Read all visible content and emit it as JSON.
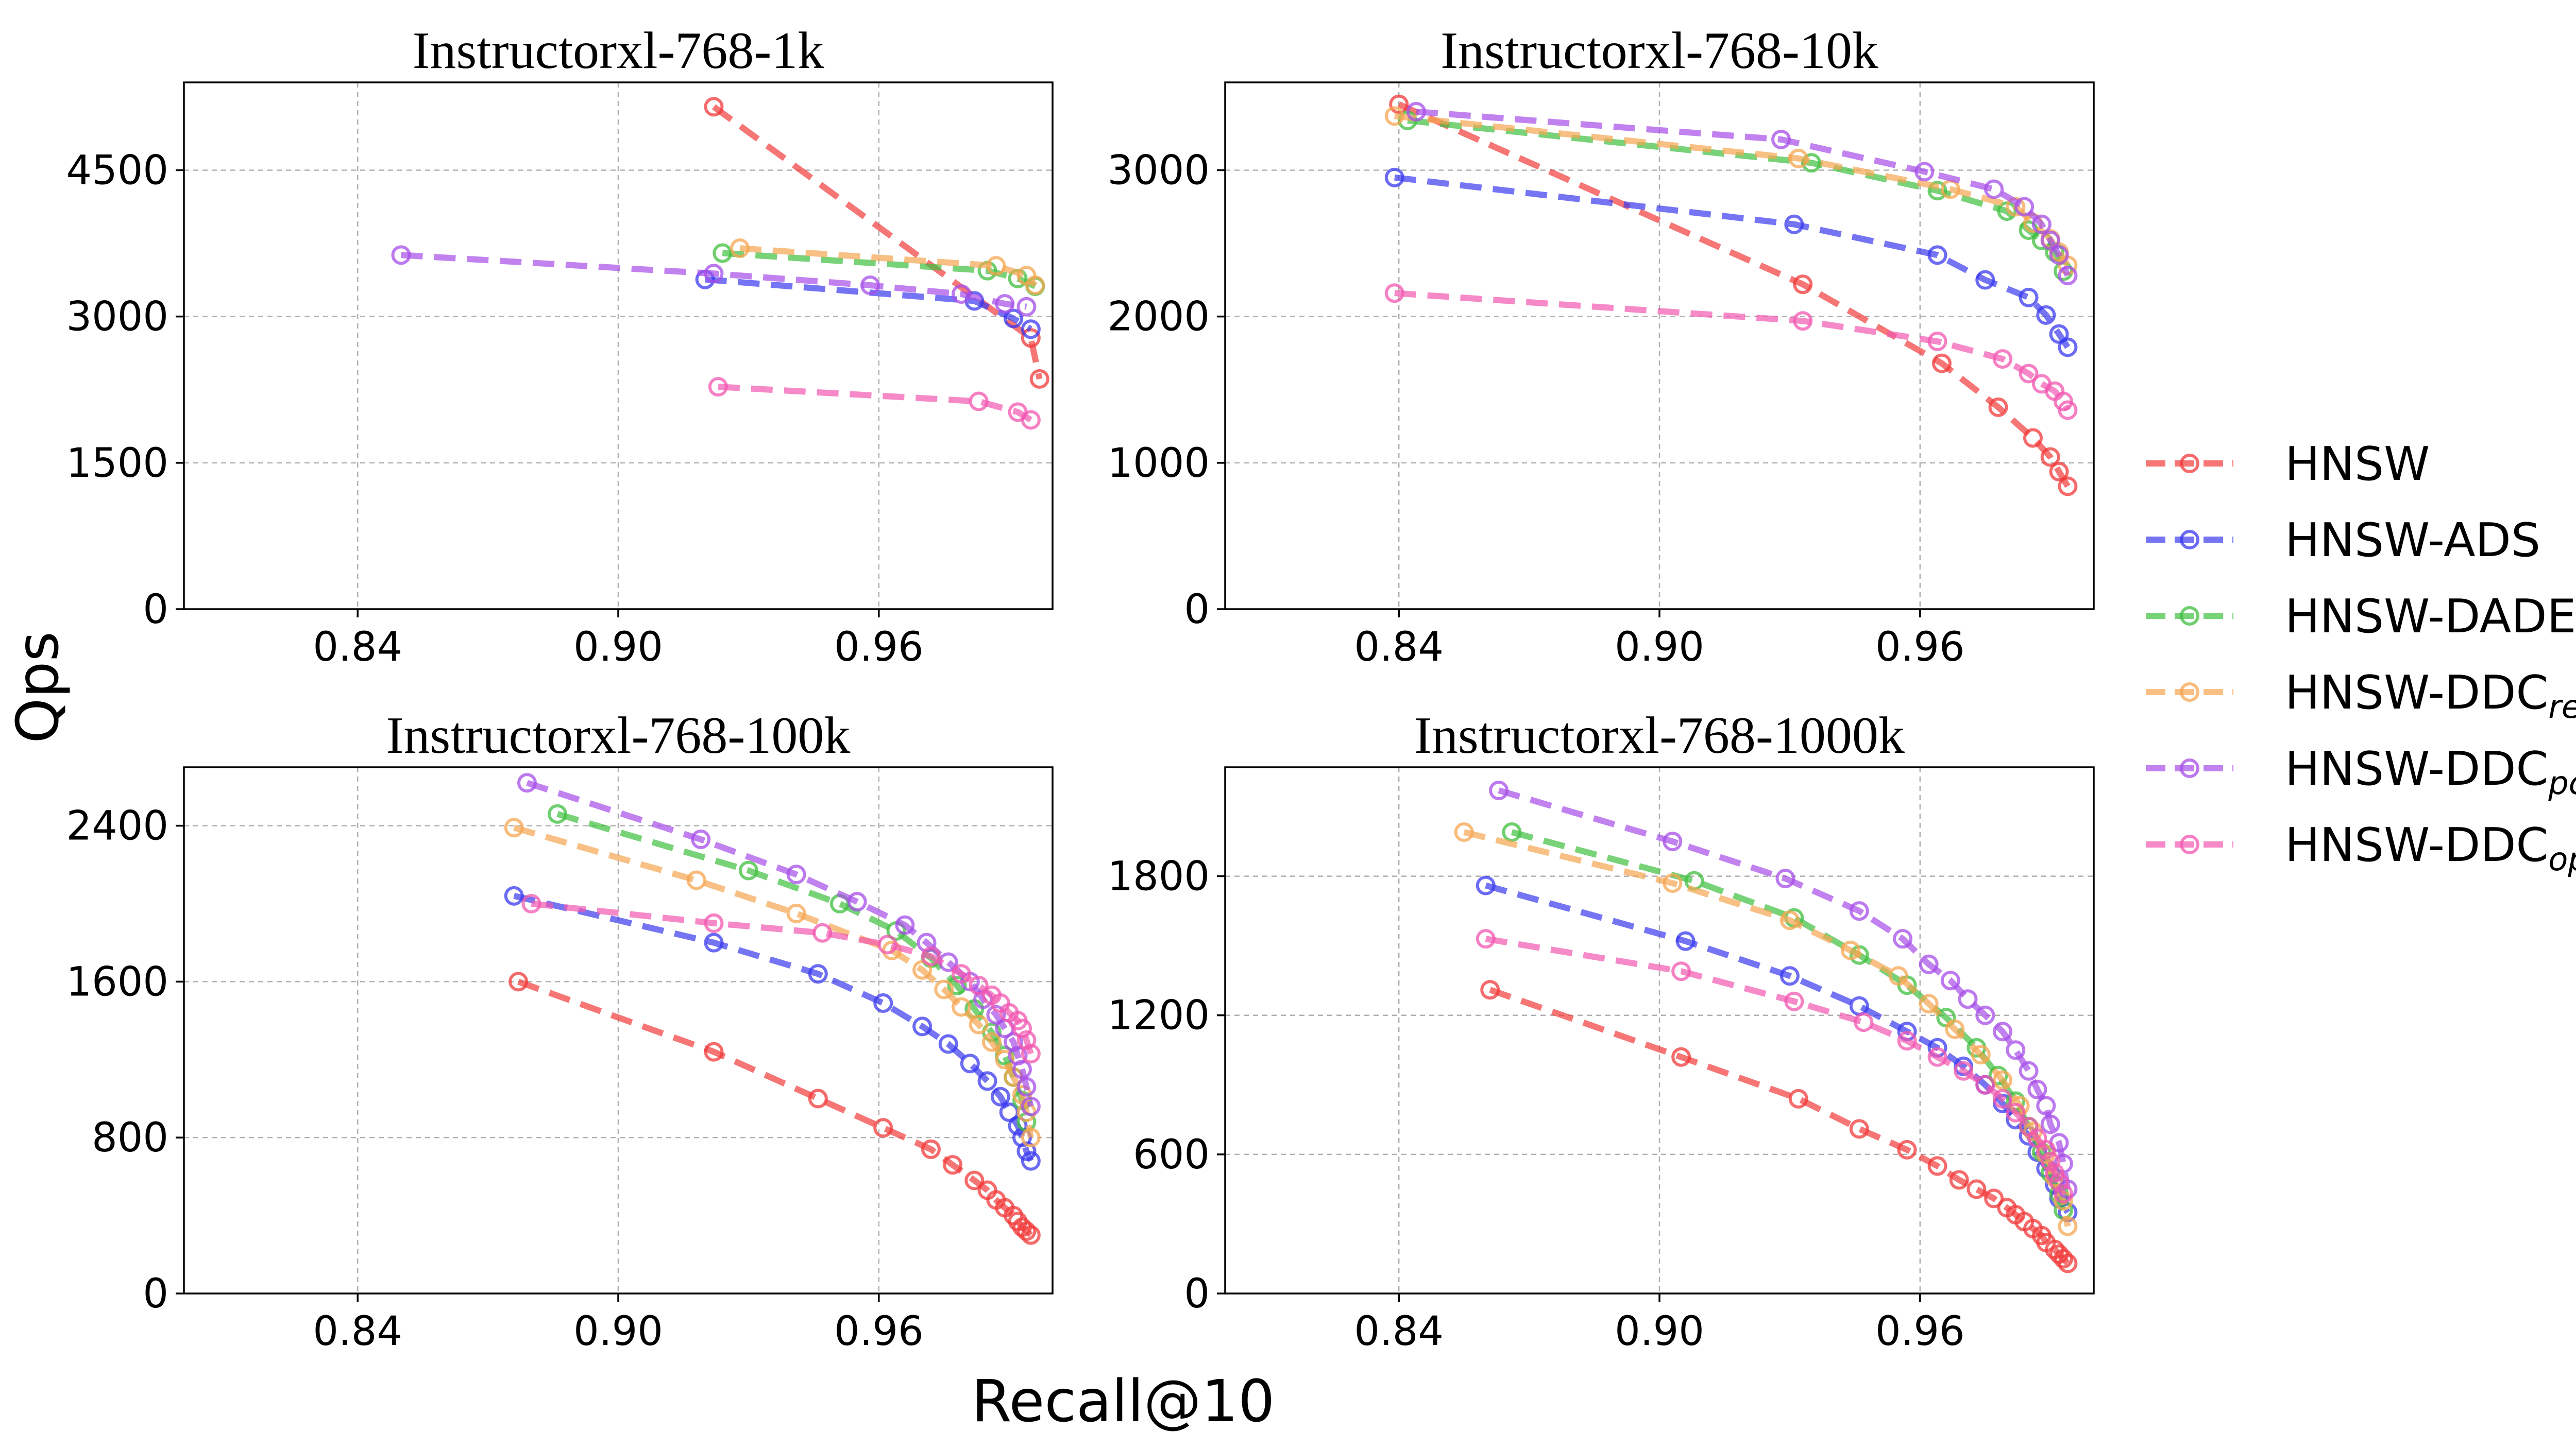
{
  "figure": {
    "xlabel": "Recall@10",
    "ylabel": "Qps"
  },
  "legend": [
    {
      "name": "HNSW",
      "base": "HNSW",
      "sub": ""
    },
    {
      "name": "HNSW-ADS",
      "base": "HNSW-ADS",
      "sub": ""
    },
    {
      "name": "HNSW-DADE",
      "base": "HNSW-DADE",
      "sub": ""
    },
    {
      "name": "HNSW-DDCres",
      "base": "HNSW-DDC",
      "sub": "res"
    },
    {
      "name": "HNSW-DDCpca",
      "base": "HNSW-DDC",
      "sub": "pca"
    },
    {
      "name": "HNSW-DDCopq",
      "base": "HNSW-DDC",
      "sub": "opq"
    }
  ],
  "colors": {
    "HNSW": "#f23a3a",
    "HNSW-ADS": "#3a3af0",
    "HNSW-DADE": "#3fbf3f",
    "HNSW-DDCres": "#f5a550",
    "HNSW-DDCpca": "#a64de8",
    "HNSW-DDCopq": "#f257b0"
  },
  "chart_data": [
    {
      "type": "line",
      "title": "Instructorxl-768-1k",
      "xlim": [
        0.8,
        1.0
      ],
      "ylim": [
        0,
        5400
      ],
      "xticks": [
        "0.84",
        "0.90",
        "0.96"
      ],
      "yticks": [
        "0",
        "1500",
        "3000",
        "4500"
      ],
      "series": [
        {
          "name": "HNSW",
          "x": [
            0.922,
            0.995,
            0.997
          ],
          "y": [
            5150,
            2780,
            2360
          ]
        },
        {
          "name": "HNSW-ADS",
          "x": [
            0.92,
            0.982,
            0.991,
            0.995
          ],
          "y": [
            3380,
            3160,
            2980,
            2870
          ]
        },
        {
          "name": "HNSW-DADE",
          "x": [
            0.924,
            0.985,
            0.992,
            0.996
          ],
          "y": [
            3650,
            3470,
            3390,
            3310
          ]
        },
        {
          "name": "HNSW-DDCres",
          "x": [
            0.928,
            0.987,
            0.994,
            0.996
          ],
          "y": [
            3700,
            3520,
            3420,
            3320
          ]
        },
        {
          "name": "HNSW-DDCpca",
          "x": [
            0.85,
            0.922,
            0.958,
            0.979,
            0.989,
            0.994
          ],
          "y": [
            3630,
            3440,
            3320,
            3230,
            3130,
            3100
          ]
        },
        {
          "name": "HNSW-DDCopq",
          "x": [
            0.923,
            0.983,
            0.992,
            0.995
          ],
          "y": [
            2280,
            2130,
            2020,
            1940
          ]
        }
      ]
    },
    {
      "type": "line",
      "title": "Instructorxl-768-10k",
      "xlim": [
        0.8,
        1.0
      ],
      "ylim": [
        0,
        3600
      ],
      "xticks": [
        "0.84",
        "0.90",
        "0.96"
      ],
      "yticks": [
        "0",
        "1000",
        "2000",
        "3000"
      ],
      "series": [
        {
          "name": "HNSW",
          "x": [
            0.84,
            0.933,
            0.965,
            0.978,
            0.986,
            0.99,
            0.992,
            0.994
          ],
          "y": [
            3450,
            2220,
            1680,
            1380,
            1170,
            1040,
            940,
            840
          ]
        },
        {
          "name": "HNSW-ADS",
          "x": [
            0.839,
            0.931,
            0.964,
            0.975,
            0.985,
            0.989,
            0.992,
            0.994
          ],
          "y": [
            2950,
            2630,
            2420,
            2250,
            2130,
            2010,
            1880,
            1790
          ]
        },
        {
          "name": "HNSW-DADE",
          "x": [
            0.842,
            0.935,
            0.964,
            0.98,
            0.985,
            0.988,
            0.991,
            0.993
          ],
          "y": [
            3340,
            3050,
            2860,
            2720,
            2590,
            2520,
            2440,
            2310
          ]
        },
        {
          "name": "HNSW-DDCres",
          "x": [
            0.839,
            0.932,
            0.967,
            0.982,
            0.986,
            0.99,
            0.992,
            0.994
          ],
          "y": [
            3370,
            3080,
            2870,
            2750,
            2640,
            2530,
            2440,
            2350
          ]
        },
        {
          "name": "HNSW-DDCpca",
          "x": [
            0.844,
            0.928,
            0.961,
            0.977,
            0.984,
            0.988,
            0.99,
            0.992,
            0.994
          ],
          "y": [
            3400,
            3210,
            2990,
            2870,
            2750,
            2630,
            2520,
            2420,
            2280
          ]
        },
        {
          "name": "HNSW-DDCopq",
          "x": [
            0.839,
            0.933,
            0.964,
            0.979,
            0.985,
            0.988,
            0.991,
            0.993,
            0.994
          ],
          "y": [
            2160,
            1970,
            1830,
            1710,
            1610,
            1540,
            1490,
            1420,
            1360
          ]
        }
      ]
    },
    {
      "type": "line",
      "title": "Instructorxl-768-100k",
      "xlim": [
        0.8,
        1.0
      ],
      "ylim": [
        0,
        2700
      ],
      "xticks": [
        "0.84",
        "0.90",
        "0.96"
      ],
      "yticks": [
        "0",
        "800",
        "1600",
        "2400"
      ],
      "series": [
        {
          "name": "HNSW",
          "x": [
            0.877,
            0.922,
            0.946,
            0.961,
            0.972,
            0.977,
            0.982,
            0.985,
            0.987,
            0.989,
            0.991,
            0.992,
            0.993,
            0.994,
            0.995
          ],
          "y": [
            1600,
            1240,
            1000,
            850,
            740,
            660,
            580,
            530,
            480,
            440,
            400,
            370,
            340,
            320,
            300
          ]
        },
        {
          "name": "HNSW-ADS",
          "x": [
            0.876,
            0.922,
            0.946,
            0.961,
            0.97,
            0.976,
            0.981,
            0.985,
            0.988,
            0.99,
            0.992,
            0.993,
            0.994,
            0.995
          ],
          "y": [
            2040,
            1800,
            1640,
            1490,
            1370,
            1280,
            1180,
            1090,
            1010,
            930,
            860,
            800,
            730,
            680
          ]
        },
        {
          "name": "HNSW-DADE",
          "x": [
            0.886,
            0.93,
            0.951,
            0.964,
            0.972,
            0.978,
            0.982,
            0.986,
            0.989,
            0.991,
            0.993,
            0.994
          ],
          "y": [
            2460,
            2170,
            2000,
            1860,
            1720,
            1580,
            1460,
            1340,
            1220,
            1110,
            990,
            880
          ]
        },
        {
          "name": "HNSW-DDCres",
          "x": [
            0.876,
            0.918,
            0.941,
            0.963,
            0.97,
            0.975,
            0.979,
            0.983,
            0.986,
            0.989,
            0.991,
            0.993,
            0.994,
            0.995
          ],
          "y": [
            2390,
            2120,
            1950,
            1760,
            1660,
            1560,
            1470,
            1380,
            1290,
            1200,
            1110,
            1020,
            930,
            800
          ]
        },
        {
          "name": "HNSW-DDCpca",
          "x": [
            0.879,
            0.919,
            0.941,
            0.955,
            0.966,
            0.971,
            0.976,
            0.981,
            0.984,
            0.987,
            0.989,
            0.991,
            0.992,
            0.993,
            0.994,
            0.995
          ],
          "y": [
            2620,
            2330,
            2150,
            2010,
            1890,
            1800,
            1700,
            1600,
            1510,
            1430,
            1360,
            1290,
            1220,
            1150,
            1060,
            960
          ]
        },
        {
          "name": "HNSW-DDCopq",
          "x": [
            0.88,
            0.922,
            0.947,
            0.962,
            0.972,
            0.979,
            0.983,
            0.986,
            0.988,
            0.99,
            0.992,
            0.993,
            0.994,
            0.995
          ],
          "y": [
            2000,
            1900,
            1850,
            1790,
            1730,
            1640,
            1580,
            1530,
            1490,
            1440,
            1400,
            1360,
            1300,
            1230
          ]
        }
      ]
    },
    {
      "type": "line",
      "title": "Instructorxl-768-1000k",
      "xlim": [
        0.8,
        1.0
      ],
      "ylim": [
        0,
        2270
      ],
      "xticks": [
        "0.84",
        "0.90",
        "0.96"
      ],
      "yticks": [
        "0",
        "600",
        "1200",
        "1800"
      ],
      "series": [
        {
          "name": "HNSW",
          "x": [
            0.861,
            0.905,
            0.932,
            0.946,
            0.957,
            0.964,
            0.969,
            0.973,
            0.977,
            0.98,
            0.982,
            0.984,
            0.986,
            0.988,
            0.989,
            0.991,
            0.992,
            0.993,
            0.994
          ],
          "y": [
            1310,
            1020,
            840,
            710,
            620,
            550,
            490,
            450,
            410,
            370,
            340,
            310,
            280,
            250,
            220,
            190,
            170,
            150,
            130
          ]
        },
        {
          "name": "HNSW-ADS",
          "x": [
            0.86,
            0.906,
            0.93,
            0.946,
            0.957,
            0.964,
            0.97,
            0.975,
            0.979,
            0.982,
            0.985,
            0.987,
            0.989,
            0.991,
            0.992,
            0.994
          ],
          "y": [
            1760,
            1520,
            1370,
            1240,
            1130,
            1060,
            980,
            900,
            820,
            750,
            680,
            610,
            540,
            470,
            410,
            350
          ]
        },
        {
          "name": "HNSW-DADE",
          "x": [
            0.866,
            0.908,
            0.931,
            0.946,
            0.957,
            0.966,
            0.973,
            0.978,
            0.982,
            0.985,
            0.988,
            0.99,
            0.992,
            0.993
          ],
          "y": [
            1990,
            1780,
            1620,
            1460,
            1330,
            1190,
            1060,
            940,
            830,
            720,
            610,
            520,
            430,
            360
          ]
        },
        {
          "name": "HNSW-DDCres",
          "x": [
            0.855,
            0.903,
            0.93,
            0.944,
            0.955,
            0.962,
            0.968,
            0.974,
            0.979,
            0.983,
            0.986,
            0.989,
            0.991,
            0.993,
            0.994
          ],
          "y": [
            1990,
            1770,
            1610,
            1480,
            1370,
            1250,
            1140,
            1030,
            920,
            810,
            700,
            600,
            500,
            400,
            290
          ]
        },
        {
          "name": "HNSW-DDCpca",
          "x": [
            0.863,
            0.903,
            0.929,
            0.946,
            0.956,
            0.962,
            0.967,
            0.971,
            0.975,
            0.979,
            0.982,
            0.985,
            0.987,
            0.989,
            0.99,
            0.992,
            0.993,
            0.994
          ],
          "y": [
            2170,
            1950,
            1790,
            1650,
            1530,
            1420,
            1350,
            1270,
            1200,
            1130,
            1050,
            960,
            880,
            810,
            730,
            650,
            560,
            450
          ]
        },
        {
          "name": "HNSW-DDCopq",
          "x": [
            0.86,
            0.905,
            0.931,
            0.947,
            0.957,
            0.964,
            0.97,
            0.975,
            0.979,
            0.982,
            0.985,
            0.987,
            0.989,
            0.99,
            0.991,
            0.992,
            0.993
          ],
          "y": [
            1530,
            1390,
            1260,
            1170,
            1090,
            1020,
            960,
            900,
            840,
            780,
            720,
            670,
            620,
            570,
            520,
            480,
            430
          ]
        }
      ]
    }
  ]
}
